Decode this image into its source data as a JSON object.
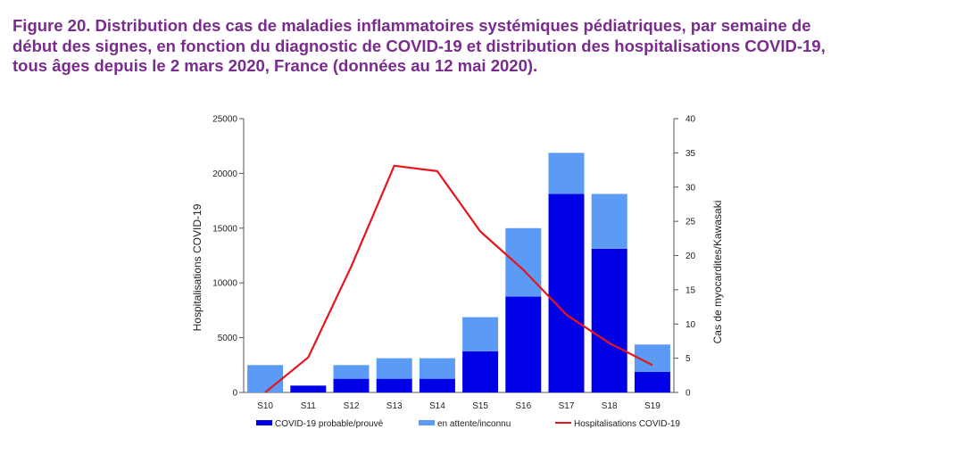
{
  "figure": {
    "title_lines": [
      "Figure 20. Distribution des cas de maladies inflammatoires systémiques pédiatriques, par semaine de",
      "début des signes, en fonction du diagnostic de COVID-19 et distribution des hospitalisations COVID-19,",
      "tous âges depuis le 2 mars 2020, France (données au 12 mai 2020)."
    ],
    "title_color": "#7a2c8e"
  },
  "chart_data": {
    "type": "bar",
    "stacked": true,
    "categories": [
      "S10",
      "S11",
      "S12",
      "S13",
      "S14",
      "S15",
      "S16",
      "S17",
      "S18",
      "S19"
    ],
    "series": [
      {
        "name": "COVID-19 probable/prouvé",
        "axis": "right",
        "color": "#0000e6",
        "values": [
          0,
          1,
          2,
          2,
          2,
          6,
          14,
          29,
          21,
          3
        ]
      },
      {
        "name": "en attente/inconnu",
        "axis": "right",
        "color": "#5b9bf5",
        "values": [
          4,
          0,
          2,
          3,
          3,
          5,
          10,
          6,
          8,
          4
        ]
      },
      {
        "name": "Hospitalisations COVID-19",
        "type": "line",
        "axis": "left",
        "color": "#e8141b",
        "values": [
          0,
          3200,
          11500,
          20700,
          20200,
          14700,
          11200,
          7100,
          4500,
          2500
        ]
      }
    ],
    "left_axis": {
      "label": "Hospitalisations  COVID-19",
      "min": 0,
      "max": 25000,
      "ticks": [
        "0",
        "5000",
        "10000",
        "15000",
        "20000",
        "25000"
      ]
    },
    "right_axis": {
      "label": "Cas de myocardites/Kawasaki",
      "min": 0,
      "max": 40,
      "ticks": [
        "0",
        "5",
        "10",
        "15",
        "20",
        "25",
        "30",
        "35",
        "40"
      ]
    },
    "legend": [
      "COVID-19 probable/prouvé",
      "en attente/inconnu",
      "Hospitalisations COVID-19"
    ],
    "legend_position": "bottom",
    "grid": false
  }
}
